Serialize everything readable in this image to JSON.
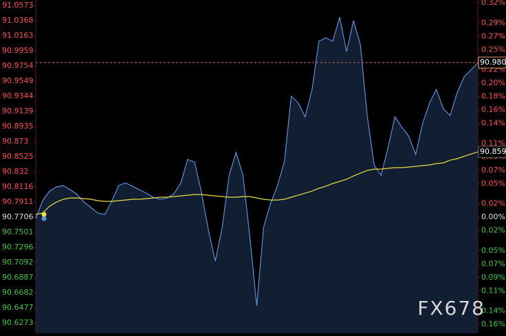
{
  "chart_data": {
    "type": "line",
    "watermark": "FX678",
    "grid": false,
    "ylim": [
      90.6273,
      91.0573
    ],
    "yticks": [
      91.0573,
      91.0368,
      91.0163,
      90.9959,
      90.9754,
      90.9549,
      90.9344,
      90.9139,
      90.8935,
      90.873,
      90.8525,
      90.832,
      90.8116,
      90.7911,
      90.7706,
      90.7501,
      90.7296,
      90.7092,
      90.6887,
      90.6682,
      90.6477,
      90.6273
    ],
    "y2lim": [
      -0.1579,
      0.3159
    ],
    "y2ticks": [
      {
        "value": 0.32,
        "label": "0.32%"
      },
      {
        "value": 0.29,
        "label": "0.29%"
      },
      {
        "value": 0.27,
        "label": "0.27%"
      },
      {
        "value": 0.25,
        "label": "0.25%"
      },
      {
        "value": 0.22,
        "label": "0.22%"
      },
      {
        "value": 0.2,
        "label": "0.20%"
      },
      {
        "value": 0.18,
        "label": "0.18%"
      },
      {
        "value": 0.16,
        "label": "0.16%"
      },
      {
        "value": 0.14,
        "label": "0.14%"
      },
      {
        "value": 0.11,
        "label": "0.11%"
      },
      {
        "value": 0.09,
        "label": "0.09%"
      },
      {
        "value": 0.07,
        "label": "0.07%"
      },
      {
        "value": 0.05,
        "label": "0.05%"
      },
      {
        "value": 0.02,
        "label": "0.02%"
      },
      {
        "value": 0,
        "label": "0.00%"
      },
      {
        "value": -0.02,
        "label": "0.02%"
      },
      {
        "value": -0.05,
        "label": "0.05%"
      },
      {
        "value": -0.07,
        "label": "0.07%"
      },
      {
        "value": -0.09,
        "label": "0.09%"
      },
      {
        "value": -0.11,
        "label": "0.11%"
      },
      {
        "value": -0.14,
        "label": "0.14%"
      },
      {
        "value": -0.16,
        "label": "0.16%"
      }
    ],
    "up_color": "#ff5050",
    "down_color": "#3cc83c",
    "flat_color": "#e0e0e0",
    "last_price": {
      "value": 90.98,
      "label": "90.980"
    },
    "last_average": 90.859,
    "series": [
      {
        "color": "#5b8fe0",
        "fill": "#15233a",
        "values": [
          90.7687,
          90.7929,
          90.8059,
          90.8115,
          90.8134,
          90.8078,
          90.8013,
          90.791,
          90.7836,
          90.7761,
          90.7743,
          90.792,
          90.8134,
          90.8171,
          90.8124,
          90.8078,
          90.8031,
          90.7976,
          90.7948,
          90.7966,
          90.8022,
          90.8171,
          90.8488,
          90.845,
          90.8041,
          90.7529,
          90.711,
          90.7575,
          90.8273,
          90.8581,
          90.8273,
          90.7436,
          90.6505,
          90.7575,
          90.7892,
          90.8134,
          90.846,
          90.9344,
          90.9251,
          90.9065,
          90.9437,
          91.0089,
          91.0135,
          91.0089,
          91.0415,
          90.9949,
          91.0368,
          91.0042,
          90.9065,
          90.8413,
          90.8273,
          90.8646,
          90.9065,
          90.8925,
          90.8804,
          90.8553,
          90.8972,
          90.9251,
          90.9437,
          90.9176,
          90.9083,
          90.9391,
          90.9605,
          90.9698,
          90.98
        ]
      },
      {
        "color": "#e8e040",
        "values": [
          90.7743,
          90.7761,
          90.7854,
          90.791,
          90.7948,
          90.7966,
          90.7966,
          90.7957,
          90.7948,
          90.7929,
          90.792,
          90.792,
          90.7929,
          90.7938,
          90.7948,
          90.7948,
          90.7957,
          90.7966,
          90.7976,
          90.7976,
          90.7985,
          90.7994,
          90.8003,
          90.8013,
          90.8013,
          90.8003,
          90.7994,
          90.7985,
          90.7976,
          90.7976,
          90.7985,
          90.7985,
          90.7966,
          90.7948,
          90.7938,
          90.7938,
          90.7948,
          90.7976,
          90.8003,
          90.8031,
          90.8059,
          90.8097,
          90.8124,
          90.8162,
          90.819,
          90.8218,
          90.8264,
          90.8301,
          90.8339,
          90.8357,
          90.8357,
          90.8367,
          90.8376,
          90.8376,
          90.8385,
          90.8394,
          90.8404,
          90.8413,
          90.8432,
          90.8441,
          90.8478,
          90.8497,
          90.853,
          90.856,
          90.859
        ]
      }
    ]
  }
}
